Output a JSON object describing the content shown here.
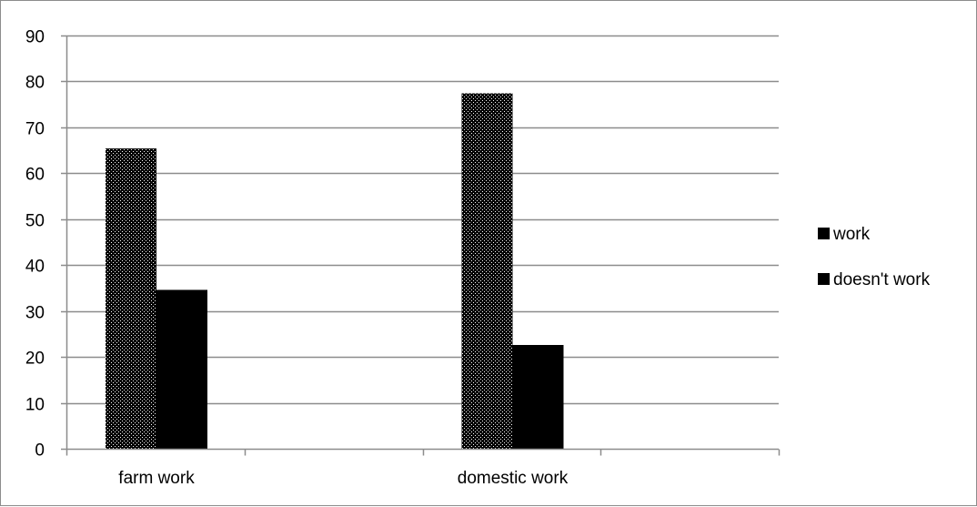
{
  "chart_data": {
    "type": "bar",
    "categories": [
      "farm work",
      "domestic work"
    ],
    "series": [
      {
        "name": "work",
        "values": [
          65.4,
          77.4
        ],
        "fill": "dotted",
        "color": "#000000"
      },
      {
        "name": "doesn't work",
        "values": [
          34.6,
          22.6
        ],
        "fill": "solid",
        "color": "#000000"
      }
    ],
    "yticks": [
      0,
      10,
      20,
      30,
      40,
      50,
      60,
      70,
      80,
      90
    ],
    "ylim": [
      0,
      90
    ],
    "grid": true,
    "legend_position": "right",
    "title": "",
    "xlabel": "",
    "ylabel": ""
  },
  "colors": {
    "grid": "#8c8c8c",
    "axis": "#8c8c8c",
    "bar": "#000000",
    "background": "#ffffff"
  }
}
